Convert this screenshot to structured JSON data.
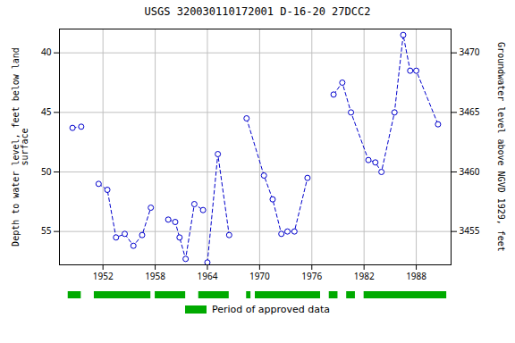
{
  "chart_data": {
    "type": "line",
    "title": "USGS 320030110172001 D-16-20 27DCC2",
    "ylabel": "Depth to water level, feet below land\nsurface",
    "y2label": "Groundwater level above NGVD 1929, feet",
    "x": [
      1948.5,
      1949.5,
      1951.5,
      1952.5,
      1953.5,
      1954.5,
      1955.5,
      1956.5,
      1957.5,
      1959.5,
      1960.3,
      1960.8,
      1961.5,
      1962.5,
      1963.5,
      1964.0,
      1965.2,
      1966.5,
      1968.5,
      1970.5,
      1971.5,
      1972.5,
      1973.2,
      1974.0,
      1975.5,
      1978.5,
      1979.5,
      1980.5,
      1982.5,
      1983.3,
      1984.0,
      1985.5,
      1986.5,
      1987.3,
      1988.0,
      1990.5
    ],
    "series": [
      {
        "color": "#0000cc",
        "marker": "open circle",
        "line_style": "dashed",
        "values": [
          46.3,
          46.2,
          51.0,
          51.5,
          55.5,
          55.2,
          56.2,
          55.3,
          53.0,
          54.0,
          54.2,
          55.5,
          57.3,
          52.7,
          53.2,
          57.6,
          48.5,
          55.3,
          45.5,
          50.3,
          52.3,
          55.2,
          55.0,
          55.0,
          50.5,
          43.5,
          42.5,
          45.0,
          49.0,
          49.2,
          50.0,
          45.0,
          38.5,
          41.5,
          41.5,
          46.0
        ]
      }
    ],
    "segments": [
      [
        0,
        1
      ],
      [
        2,
        3,
        4,
        5,
        6,
        7,
        8
      ],
      [
        9,
        10,
        11,
        12,
        13,
        14
      ],
      [
        15,
        16,
        17
      ],
      [
        18,
        19,
        20,
        21,
        22,
        23,
        24
      ],
      [
        25,
        26,
        27,
        28,
        29,
        30,
        31,
        32,
        33,
        34,
        35
      ]
    ],
    "xlim": [
      1947,
      1992
    ],
    "xticks": [
      1952,
      1958,
      1964,
      1970,
      1976,
      1982,
      1988
    ],
    "ylim": [
      57.8,
      38.0
    ],
    "yticks": [
      40,
      45,
      50,
      55
    ],
    "y2lim": [
      3452.2,
      3472.0
    ],
    "y2ticks": [
      3455,
      3460,
      3465,
      3470
    ],
    "grid": true,
    "legend": "bottom",
    "periods": {
      "name": "Period of approved data",
      "color": "#00aa00",
      "values": [
        [
          1948.0,
          1949.5
        ],
        [
          1951.0,
          1957.5
        ],
        [
          1958.0,
          1961.5
        ],
        [
          1963.0,
          1966.5
        ],
        [
          1968.5,
          1969.0
        ],
        [
          1969.5,
          1977.0
        ],
        [
          1978.0,
          1979.0
        ],
        [
          1980.0,
          1981.0
        ],
        [
          1982.0,
          1991.5
        ]
      ]
    }
  }
}
